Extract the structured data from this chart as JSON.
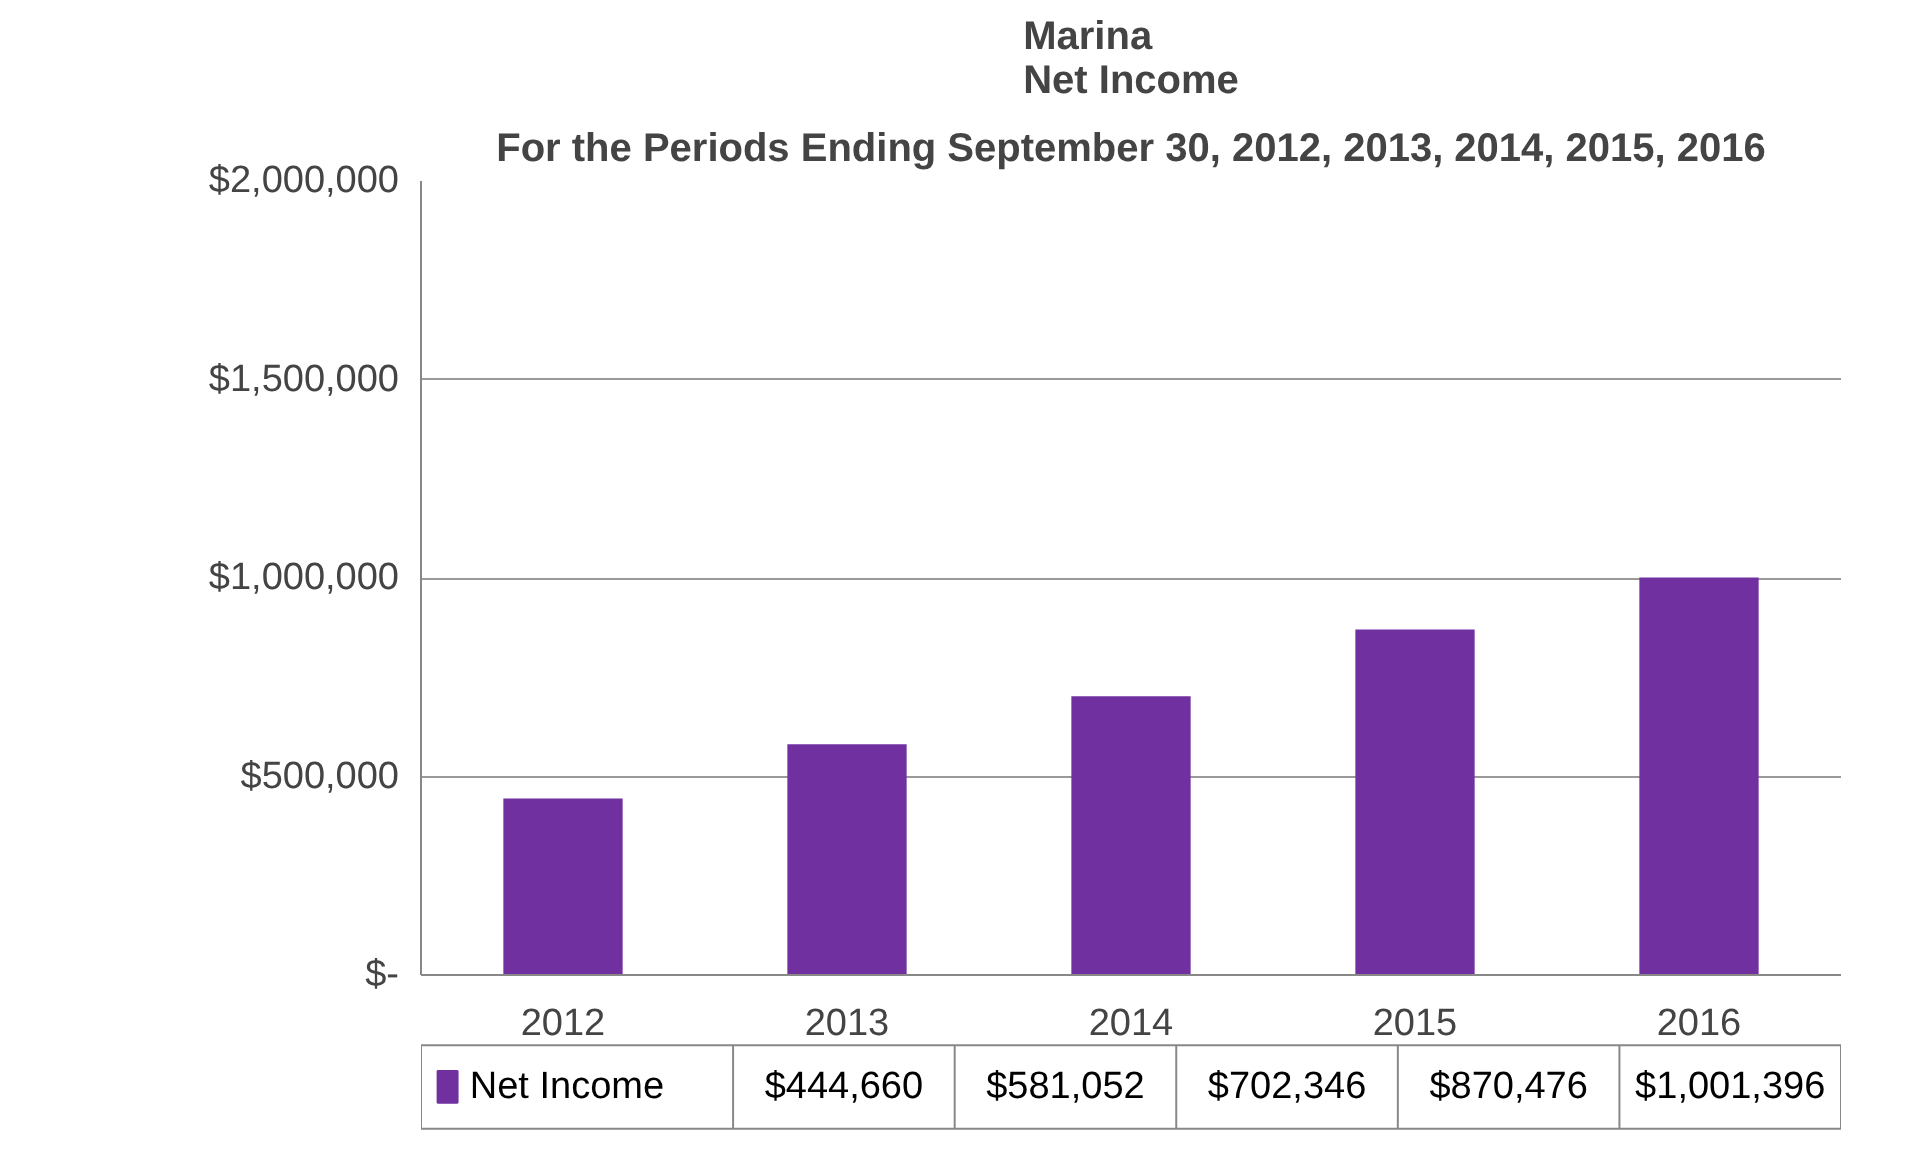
{
  "chart_data": {
    "type": "bar",
    "title": "Marina\nNet Income",
    "subtitle": "For the Periods Ending September 30, 2012, 2013, 2014, 2015, 2016",
    "categories": [
      "2012",
      "2013",
      "2014",
      "2015",
      "2016"
    ],
    "series": [
      {
        "name": "Net Income",
        "color": "#7030a0",
        "values": [
          444660,
          581052,
          702346,
          870476,
          1001396
        ]
      }
    ],
    "ylim": [
      0,
      2000000
    ],
    "yticks": [
      {
        "value": 0,
        "label": "$-"
      },
      {
        "value": 500000,
        "label": "$500,000"
      },
      {
        "value": 1000000,
        "label": "$1,000,000"
      },
      {
        "value": 1500000,
        "label": "$1,500,000"
      },
      {
        "value": 2000000,
        "label": "$2,000,000"
      }
    ],
    "value_labels": [
      "$444,660",
      "$581,052",
      "$702,346",
      "$870,476",
      "$1,001,396"
    ],
    "grid": "y",
    "legend": "bottom"
  }
}
